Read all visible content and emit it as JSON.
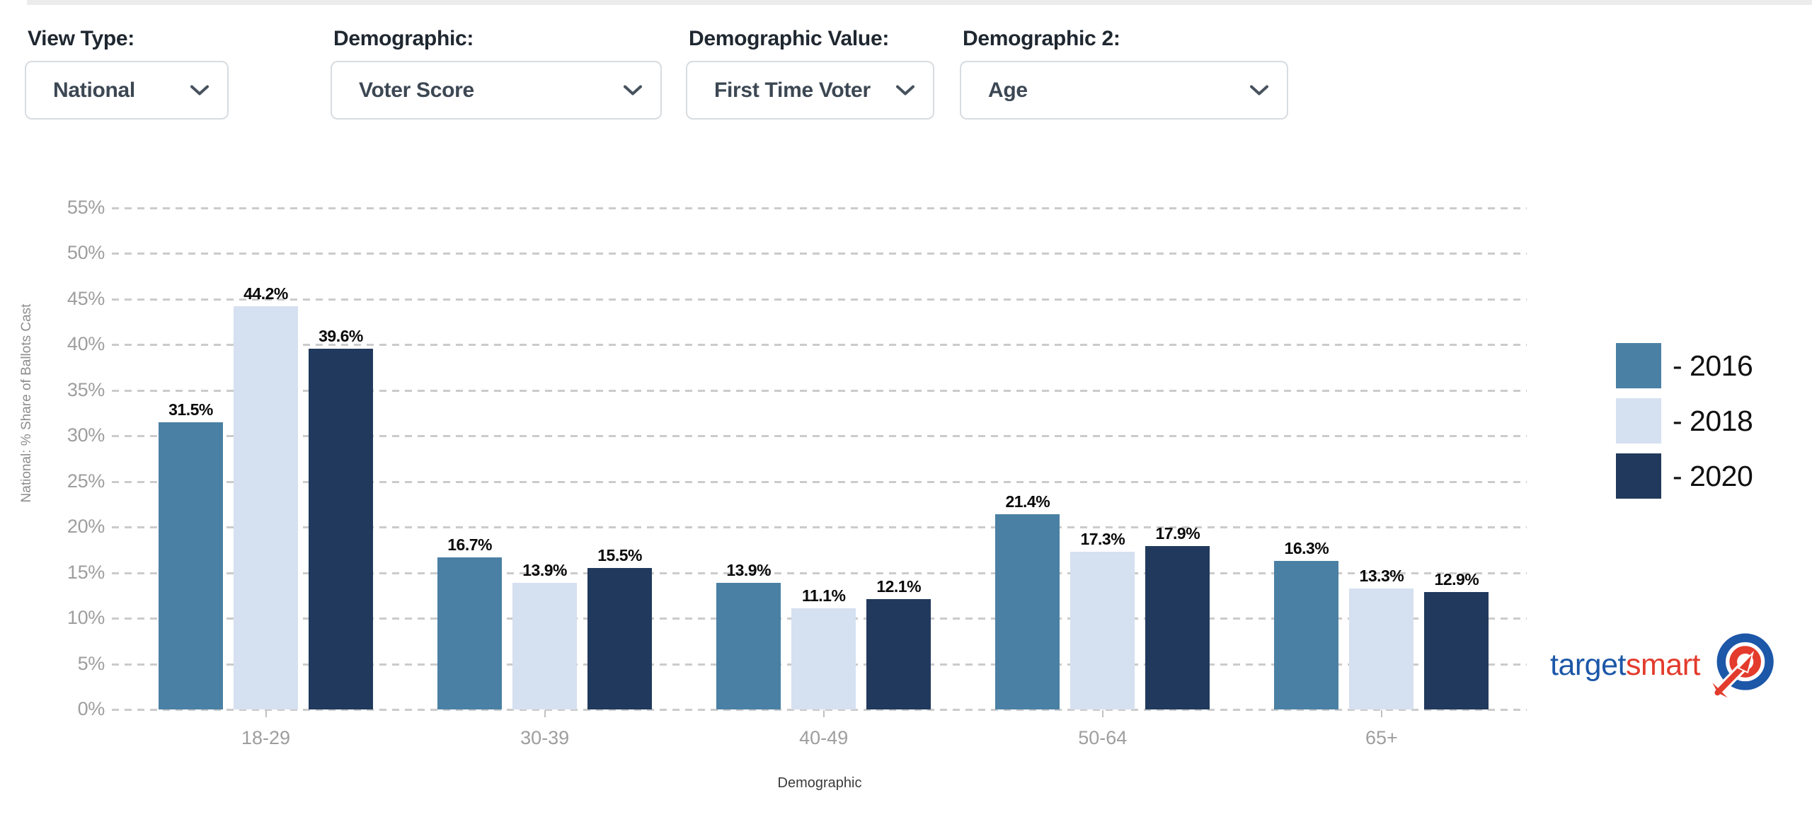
{
  "ui": {
    "top_strip_color": "#ececec"
  },
  "filters": [
    {
      "label": "View Type:",
      "value": "National"
    },
    {
      "label": "Demographic:",
      "value": "Voter Score"
    },
    {
      "label": "Demographic Value:",
      "value": "First Time Voter"
    },
    {
      "label": "Demographic 2:",
      "value": "Age"
    }
  ],
  "chart_data": {
    "type": "bar",
    "categories": [
      "18-29",
      "30-39",
      "40-49",
      "50-64",
      "65+"
    ],
    "series": [
      {
        "name": "2016",
        "legend_label": "- 2016",
        "color": "#4a80a4",
        "values": [
          31.5,
          16.7,
          13.9,
          21.4,
          16.3
        ],
        "labels": [
          "31.5%",
          "16.7%",
          "13.9%",
          "21.4%",
          "16.3%"
        ]
      },
      {
        "name": "2018",
        "legend_label": "- 2018",
        "color": "#d5e0f0",
        "values": [
          44.2,
          13.9,
          11.1,
          17.3,
          13.3
        ],
        "labels": [
          "44.2%",
          "13.9%",
          "11.1%",
          "17.3%",
          "13.3%"
        ]
      },
      {
        "name": "2020",
        "legend_label": "- 2020",
        "color": "#21395c",
        "values": [
          39.6,
          15.5,
          12.1,
          17.9,
          12.9
        ],
        "labels": [
          "39.6%",
          "15.5%",
          "12.1%",
          "17.9%",
          "12.9%"
        ]
      }
    ],
    "title": "",
    "xlabel": "Demographic",
    "ylabel": "National: % Share of Ballots Cast",
    "ylim": [
      0,
      55
    ],
    "ytick_step": 5,
    "yticks": [
      "55%",
      "50%",
      "45%",
      "40%",
      "35%",
      "30%",
      "25%",
      "20%",
      "15%",
      "10%",
      "5%",
      "0%"
    ],
    "grid": "horizontal-dashed",
    "legend_position": "right",
    "value_labels": "above-bars"
  },
  "branding": {
    "logo_text_blue": "target",
    "logo_text_red": "smart",
    "logo_blue": "#1c57a8",
    "logo_red": "#e33b2c"
  }
}
